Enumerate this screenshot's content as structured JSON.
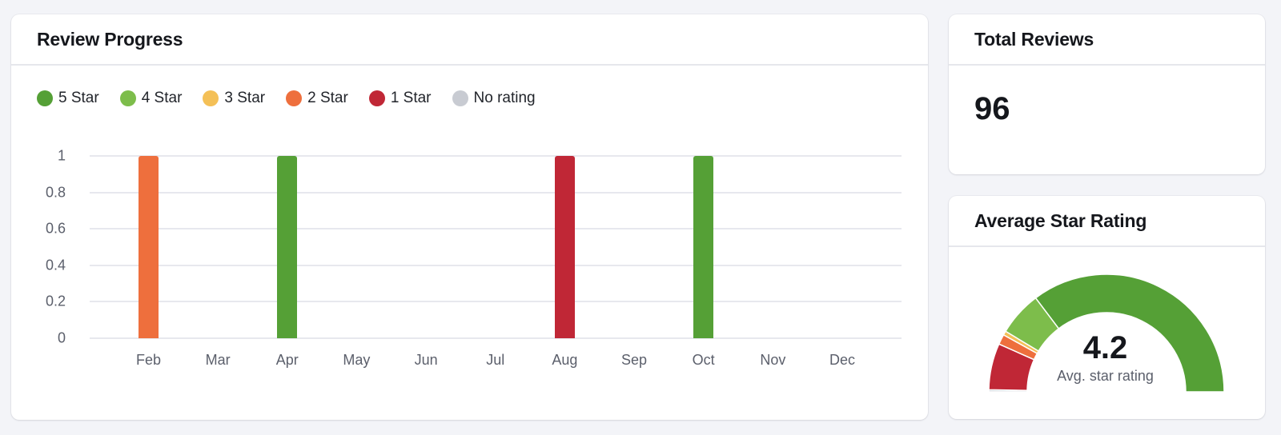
{
  "review_progress": {
    "title": "Review Progress",
    "legend": [
      {
        "label": "5 Star",
        "color": "#55A036"
      },
      {
        "label": "4 Star",
        "color": "#7DBD4B"
      },
      {
        "label": "3 Star",
        "color": "#F4C057"
      },
      {
        "label": "2 Star",
        "color": "#EE6F3D"
      },
      {
        "label": "1 Star",
        "color": "#C02736"
      },
      {
        "label": "No rating",
        "color": "#C8CBD2"
      }
    ],
    "y_ticks": [
      "1",
      "0.8",
      "0.6",
      "0.4",
      "0.2",
      "0"
    ],
    "x_ticks": [
      "Feb",
      "Mar",
      "Apr",
      "May",
      "Jun",
      "Jul",
      "Aug",
      "Sep",
      "Oct",
      "Nov",
      "Dec"
    ]
  },
  "total_reviews": {
    "title": "Total Reviews",
    "value": "96"
  },
  "average_rating": {
    "title": "Average Star Rating",
    "value": "4.2",
    "label": "Avg. star rating"
  },
  "chart_data": [
    {
      "type": "bar",
      "title": "Review Progress",
      "categories": [
        "Feb",
        "Mar",
        "Apr",
        "May",
        "Jun",
        "Jul",
        "Aug",
        "Sep",
        "Oct",
        "Nov",
        "Dec"
      ],
      "series": [
        {
          "name": "5 Star",
          "color": "#55A036",
          "values": [
            0,
            0,
            1,
            0,
            0,
            0,
            0,
            0,
            1,
            0,
            0
          ]
        },
        {
          "name": "4 Star",
          "color": "#7DBD4B",
          "values": [
            0,
            0,
            0,
            0,
            0,
            0,
            0,
            0,
            0,
            0,
            0
          ]
        },
        {
          "name": "3 Star",
          "color": "#F4C057",
          "values": [
            0,
            0,
            0,
            0,
            0,
            0,
            0,
            0,
            0,
            0,
            0
          ]
        },
        {
          "name": "2 Star",
          "color": "#EE6F3D",
          "values": [
            1,
            0,
            0,
            0,
            0,
            0,
            0,
            0,
            0,
            0,
            0
          ]
        },
        {
          "name": "1 Star",
          "color": "#C02736",
          "values": [
            0,
            0,
            0,
            0,
            0,
            0,
            1,
            0,
            0,
            0,
            0
          ]
        },
        {
          "name": "No rating",
          "color": "#C8CBD2",
          "values": [
            0,
            0,
            0,
            0,
            0,
            0,
            0,
            0,
            0,
            0,
            0
          ]
        }
      ],
      "xlabel": "",
      "ylabel": "",
      "ylim": [
        0,
        1
      ],
      "yticks": [
        0,
        0.2,
        0.4,
        0.6,
        0.8,
        1
      ],
      "grid": true,
      "legend_position": "top-left"
    },
    {
      "type": "pie",
      "subtype": "half-donut gauge",
      "title": "Average Star Rating",
      "center_value": 4.2,
      "center_label": "Avg. star rating",
      "categories": [
        "No rating",
        "1 Star",
        "2 Star",
        "3 Star",
        "4 Star",
        "5 Star"
      ],
      "colors": [
        "#C8CBD2",
        "#C02736",
        "#EE6F3D",
        "#F4C057",
        "#7DBD4B",
        "#55A036"
      ],
      "values_degrees": [
        1,
        23,
        5,
        2,
        22,
        127
      ],
      "approx_counts": [
        1,
        12,
        3,
        1,
        12,
        67
      ]
    }
  ]
}
